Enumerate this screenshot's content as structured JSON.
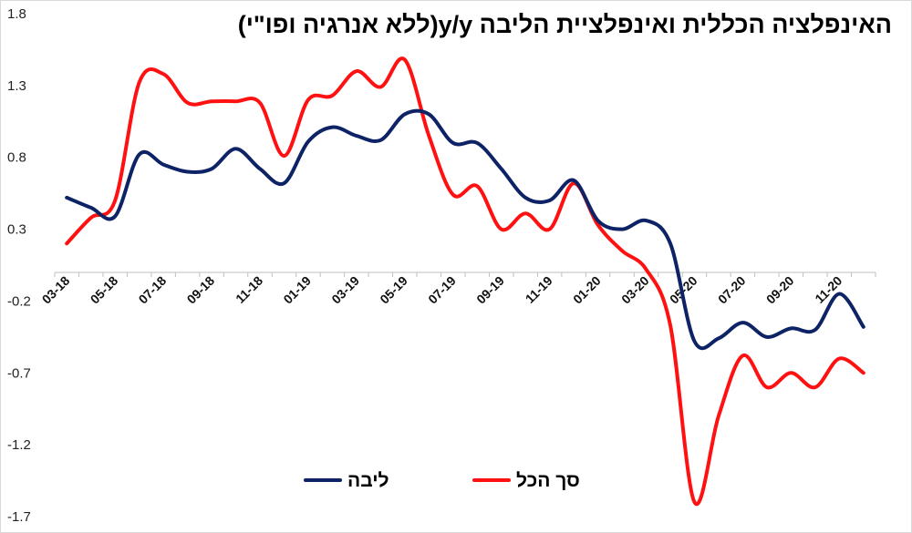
{
  "chart_data": {
    "type": "line",
    "title": "האינפלציה הכללית ואינפלציית הליבה  y/y(ללא אנרגיה ופו\"י)",
    "xlabel": "",
    "ylabel": "",
    "ylim": [
      -1.7,
      1.8
    ],
    "yticks": [
      "1.8",
      "1.3",
      "0.8",
      "0.3",
      "-0.2",
      "-0.7",
      "-1.2",
      "-1.7"
    ],
    "xticks": [
      "03-18",
      "05-18",
      "07-18",
      "09-18",
      "11-18",
      "01-19",
      "03-19",
      "05-19",
      "07-19",
      "09-19",
      "11-19",
      "01-20",
      "03-20",
      "05-20",
      "07-20",
      "09-20",
      "11-20"
    ],
    "x": [
      "03-18",
      "04-18",
      "05-18",
      "06-18",
      "07-18",
      "08-18",
      "09-18",
      "10-18",
      "11-18",
      "12-18",
      "01-19",
      "02-19",
      "03-19",
      "04-19",
      "05-19",
      "06-19",
      "07-19",
      "08-19",
      "09-19",
      "10-19",
      "11-19",
      "12-19",
      "01-20",
      "02-20",
      "03-20",
      "04-20",
      "05-20",
      "06-20",
      "07-20",
      "08-20",
      "09-20",
      "10-20",
      "11-20",
      "12-20"
    ],
    "series": [
      {
        "name": "ליבה",
        "color": "#0d2366",
        "values": [
          0.52,
          0.45,
          0.39,
          0.82,
          0.75,
          0.7,
          0.72,
          0.86,
          0.72,
          0.62,
          0.91,
          1.01,
          0.95,
          0.92,
          1.1,
          1.1,
          0.9,
          0.9,
          0.72,
          0.52,
          0.5,
          0.64,
          0.36,
          0.3,
          0.36,
          0.2,
          -0.48,
          -0.46,
          -0.35,
          -0.45,
          -0.39,
          -0.4,
          -0.15,
          -0.38
        ]
      },
      {
        "name": "סך הכל",
        "color": "#ff1111",
        "values": [
          0.2,
          0.38,
          0.5,
          1.32,
          1.38,
          1.18,
          1.19,
          1.19,
          1.18,
          0.81,
          1.2,
          1.23,
          1.4,
          1.29,
          1.48,
          0.95,
          0.54,
          0.6,
          0.3,
          0.41,
          0.3,
          0.62,
          0.33,
          0.15,
          0.02,
          -0.37,
          -1.6,
          -1.0,
          -0.58,
          -0.8,
          -0.7,
          -0.8,
          -0.6,
          -0.7
        ]
      }
    ],
    "legend_position": "bottom-center",
    "grid": false
  }
}
